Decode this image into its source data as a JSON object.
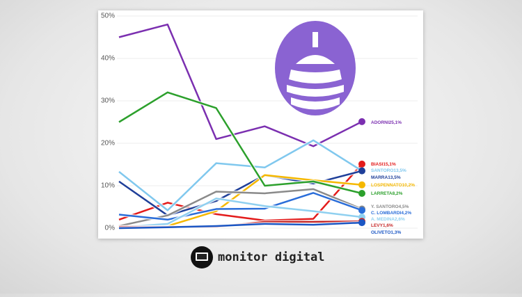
{
  "chart_data": {
    "type": "line",
    "categories": [
      null,
      null,
      null,
      null,
      null,
      null
    ],
    "ylim": [
      0,
      50
    ],
    "yticks": [
      {
        "value": 0,
        "label": "0%"
      },
      {
        "value": 10,
        "label": "10%"
      },
      {
        "value": 20,
        "label": "20%"
      },
      {
        "value": 30,
        "label": "30%"
      },
      {
        "value": 40,
        "label": "40%"
      },
      {
        "value": 50,
        "label": "50%"
      }
    ],
    "grid": true,
    "series": [
      {
        "name": "ADORNI",
        "color": "#7b2fb0",
        "values": [
          45,
          48,
          21,
          24,
          19.3,
          25.1
        ],
        "value_labels": [
          null,
          null,
          null,
          null,
          null,
          "25,1%"
        ]
      },
      {
        "name": "BIASI",
        "color": "#e31b1b",
        "values": [
          2,
          6,
          3.3,
          1.8,
          2.2,
          15.1
        ],
        "value_labels": [
          null,
          null,
          null,
          null,
          null,
          "15,1%"
        ]
      },
      {
        "name": "SANTORO",
        "color": "#80c8ee",
        "values": [
          13.3,
          4.2,
          15.3,
          14.3,
          20.7,
          13.5
        ],
        "value_labels": [
          null,
          null,
          null,
          null,
          null,
          "13,5%"
        ]
      },
      {
        "name": "MARRA",
        "color": "#1f3f99",
        "values": [
          11,
          3,
          6.4,
          12.5,
          10.5,
          13.5
        ],
        "value_labels": [
          null,
          null,
          null,
          null,
          null,
          "13,5%"
        ]
      },
      {
        "name": "LOSPENNATO",
        "color": "#f5b800",
        "values": [
          0,
          0.5,
          4,
          12.5,
          11.3,
          10.2
        ],
        "value_labels": [
          null,
          null,
          null,
          null,
          null,
          "10,2%"
        ]
      },
      {
        "name": "LARRETA",
        "color": "#2ca02c",
        "values": [
          25,
          32,
          28.3,
          10,
          11,
          8.2
        ],
        "value_labels": [
          null,
          null,
          null,
          null,
          null,
          "8,2%"
        ]
      },
      {
        "name": "Y. SANTORO",
        "color": "#8a8a8a",
        "values": [
          0.5,
          3,
          8.6,
          8.2,
          9.2,
          4.5
        ],
        "value_labels": [
          null,
          null,
          null,
          null,
          null,
          "4,5%"
        ]
      },
      {
        "name": "C. LOMBARDI",
        "color": "#2a6dd9",
        "values": [
          3.2,
          2,
          4.5,
          4.6,
          8.3,
          4.2
        ],
        "value_labels": [
          null,
          null,
          null,
          null,
          null,
          "4,2%"
        ]
      },
      {
        "name": "A. MEDINA",
        "color": "#8fd0f0",
        "values": [
          0.2,
          1,
          7,
          5.2,
          4,
          2.6
        ],
        "value_labels": [
          null,
          null,
          null,
          null,
          null,
          "2,6%"
        ]
      },
      {
        "name": "LEVY",
        "color": "#c62828",
        "values": [
          0.3,
          0.3,
          0.3,
          1.5,
          1.5,
          1.6
        ],
        "value_labels": [
          null,
          null,
          null,
          null,
          null,
          "1,6%"
        ]
      },
      {
        "name": "OLIVETO",
        "color": "#1a56c4",
        "values": [
          0,
          0.2,
          0.5,
          1,
          0.8,
          1.3
        ],
        "value_labels": [
          null,
          null,
          null,
          null,
          null,
          "1,3%"
        ]
      }
    ]
  },
  "brand": "monitor digital"
}
